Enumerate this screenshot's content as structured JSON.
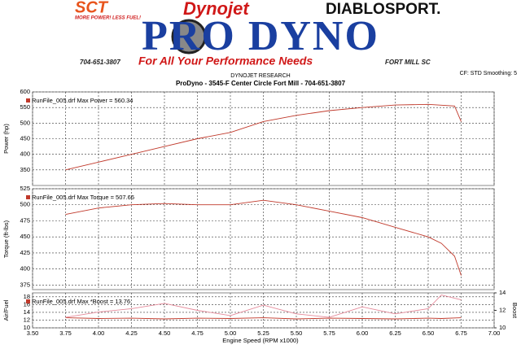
{
  "header": {
    "sct": "SCT",
    "sct_tagline": "MORE POWER! LESS FUEL!",
    "dynojet": "Dynojet",
    "diablosport": "DIABLOSPORT.",
    "logo": "PRO DYNO",
    "phone": "704-651-3807",
    "tagline": "For All Your Performance Needs",
    "city": "FORT MILL SC"
  },
  "settings": "CF: STD  Smoothing: 5",
  "research": "DYNOJET RESEARCH",
  "title": "ProDyno - 3545-F Center Circle Fort Mill  - 704-651-3807",
  "chart_data": [
    {
      "type": "line",
      "ylabel": "Power (hp)",
      "annotation": "RunFile_005.drf Max Power = 560.34",
      "ylim": [
        300,
        600
      ],
      "yticks": [
        350,
        400,
        450,
        500,
        550,
        600
      ],
      "grid": true,
      "x": [
        3.75,
        4.0,
        4.25,
        4.5,
        4.75,
        5.0,
        5.25,
        5.5,
        5.75,
        6.0,
        6.25,
        6.5,
        6.7,
        6.75
      ],
      "series": [
        {
          "name": "Power",
          "color": "#c0392b",
          "values": [
            350,
            375,
            400,
            425,
            450,
            470,
            505,
            525,
            540,
            550,
            558,
            560,
            555,
            505
          ]
        }
      ]
    },
    {
      "type": "line",
      "ylabel": "Torque (ft-lbs)",
      "annotation": "RunFile_005.drf Max Torque = 507.66",
      "ylim": [
        368,
        525
      ],
      "yticks": [
        375,
        400,
        425,
        450,
        475,
        500,
        525
      ],
      "grid": true,
      "x": [
        3.75,
        4.0,
        4.25,
        4.5,
        4.75,
        5.0,
        5.25,
        5.5,
        5.75,
        6.0,
        6.25,
        6.5,
        6.6,
        6.7,
        6.75
      ],
      "series": [
        {
          "name": "Torque",
          "color": "#c0392b",
          "values": [
            485,
            495,
            500,
            502,
            500,
            500,
            507,
            500,
            490,
            480,
            465,
            450,
            440,
            420,
            390
          ]
        }
      ]
    },
    {
      "type": "line",
      "ylabel": "Air/Fuel",
      "y2label": "Boost",
      "annotation": "RunFile_005.drf Max *Boost = 13.76",
      "ylim": [
        10,
        19
      ],
      "yticks": [
        10,
        12,
        14,
        16,
        18
      ],
      "y2lim": [
        10,
        14
      ],
      "y2ticks": [
        10,
        12,
        14
      ],
      "grid": true,
      "xlabel": "Engine Speed (RPM x1000)",
      "xlim": [
        3.5,
        7.0
      ],
      "xticks": [
        {
          "value": 3.5,
          "label": "3.50"
        },
        {
          "value": 3.75,
          "label": "3.75"
        },
        {
          "value": 4.0,
          "label": "4.00"
        },
        {
          "value": 4.25,
          "label": "4.25"
        },
        {
          "value": 4.5,
          "label": "4.50"
        },
        {
          "value": 4.75,
          "label": "4.75"
        },
        {
          "value": 5.0,
          "label": "5.00"
        },
        {
          "value": 5.25,
          "label": "5.25"
        },
        {
          "value": 5.5,
          "label": "5.50"
        },
        {
          "value": 5.75,
          "label": "5.75"
        },
        {
          "value": 6.0,
          "label": "6.00"
        },
        {
          "value": 6.25,
          "label": "6.25"
        },
        {
          "value": 6.5,
          "label": "6.50"
        },
        {
          "value": 6.75,
          "label": "6.75"
        },
        {
          "value": 7.0,
          "label": "7.00"
        }
      ],
      "x": [
        3.75,
        4.0,
        4.25,
        4.5,
        4.75,
        5.0,
        5.25,
        5.5,
        5.75,
        6.0,
        6.25,
        6.5,
        6.6,
        6.75
      ],
      "series": [
        {
          "name": "Air/Fuel",
          "color": "#c0392b",
          "values": [
            12.6,
            12.4,
            12.5,
            12.3,
            12.5,
            12.4,
            12.6,
            12.3,
            12.5,
            12.4,
            12.3,
            12.5,
            12.4,
            12.6
          ]
        },
        {
          "name": "Boost",
          "color": "#e58a9a",
          "axis": "y2",
          "values": [
            11.2,
            11.8,
            12.2,
            12.8,
            12.0,
            11.4,
            12.6,
            11.6,
            11.2,
            12.4,
            11.6,
            12.2,
            13.76,
            13.2
          ]
        }
      ]
    }
  ]
}
